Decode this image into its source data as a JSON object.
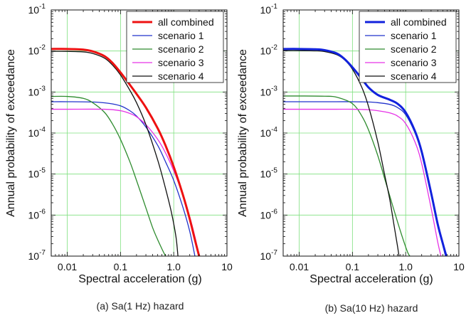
{
  "chart_data": [
    {
      "type": "line",
      "caption": "(a) Sa(1 Hz) hazard",
      "xlabel": "Spectral acceleration (g)",
      "ylabel": "Annual probability of exceedance",
      "xscale": "log",
      "yscale": "log",
      "xlim": [
        0.005,
        10
      ],
      "ylim": [
        1e-07,
        0.1
      ],
      "x_ticks": [
        "0.01",
        "0.1",
        "1.0",
        "10"
      ],
      "y_ticks": [
        "10^-7",
        "10^-6",
        "10^-5",
        "10^-4",
        "10^-3",
        "10^-2",
        "10^-1"
      ],
      "grid": true,
      "legend": "top-right",
      "series": [
        {
          "name": "all combined",
          "color": "#ee1111",
          "width": 3,
          "x": [
            0.005,
            0.01,
            0.02,
            0.03,
            0.05,
            0.07,
            0.1,
            0.15,
            0.2,
            0.3,
            0.5,
            0.7,
            1.0,
            1.5,
            2.0,
            2.5,
            3.0
          ],
          "y": [
            0.0112,
            0.0112,
            0.0108,
            0.0098,
            0.0075,
            0.0052,
            0.003,
            0.0015,
            0.0009,
            0.00042,
            0.00013,
            5e-05,
            1.5e-05,
            3e-06,
            8e-07,
            2.5e-07,
            1e-07
          ]
        },
        {
          "name": "scenario 1",
          "color": "#2233cc",
          "width": 1.3,
          "x": [
            0.005,
            0.01,
            0.03,
            0.06,
            0.1,
            0.15,
            0.2,
            0.3,
            0.5,
            0.7,
            1.0,
            1.5,
            2.0,
            2.5
          ],
          "y": [
            0.00058,
            0.00058,
            0.00057,
            0.00053,
            0.00046,
            0.00035,
            0.00026,
            0.00014,
            5e-05,
            2e-05,
            7e-06,
            1.5e-06,
            4e-07,
            1e-07
          ]
        },
        {
          "name": "scenario 2",
          "color": "#2e8b2e",
          "width": 1.3,
          "x": [
            0.005,
            0.01,
            0.02,
            0.03,
            0.05,
            0.07,
            0.1,
            0.15,
            0.2,
            0.3,
            0.4,
            0.5,
            0.6,
            0.7
          ],
          "y": [
            0.00078,
            0.00078,
            0.0007,
            0.00055,
            0.00032,
            0.00017,
            7e-05,
            2e-05,
            7e-06,
            1.5e-06,
            5e-07,
            2.5e-07,
            1.5e-07,
            1e-07
          ]
        },
        {
          "name": "scenario 3",
          "color": "#e633e6",
          "width": 1.3,
          "x": [
            0.005,
            0.01,
            0.05,
            0.1,
            0.15,
            0.2,
            0.3,
            0.5,
            0.7,
            1.0,
            1.5,
            2.0,
            2.5,
            3.0
          ],
          "y": [
            0.00038,
            0.00038,
            0.00038,
            0.00035,
            0.0003,
            0.00025,
            0.00016,
            7e-05,
            3.3e-05,
            1.2e-05,
            3e-06,
            9e-07,
            3e-07,
            1e-07
          ]
        },
        {
          "name": "scenario 4",
          "color": "#111111",
          "width": 1.3,
          "x": [
            0.005,
            0.01,
            0.02,
            0.03,
            0.05,
            0.07,
            0.1,
            0.15,
            0.2,
            0.3,
            0.5,
            0.7,
            0.9,
            1.1,
            1.2
          ],
          "y": [
            0.0098,
            0.0098,
            0.0095,
            0.0087,
            0.0067,
            0.0046,
            0.0026,
            0.0011,
            0.00055,
            0.00016,
            2.2e-05,
            4.5e-06,
            1.2e-06,
            3e-07,
            1e-07
          ]
        }
      ]
    },
    {
      "type": "line",
      "caption": "(b) Sa(10 Hz) hazard",
      "xlabel": "Spectral acceleration (g)",
      "ylabel": "Annual probability of exceedance",
      "xscale": "log",
      "yscale": "log",
      "xlim": [
        0.005,
        10
      ],
      "ylim": [
        1e-07,
        0.1
      ],
      "x_ticks": [
        "0.01",
        "0.1",
        "1.0",
        "10"
      ],
      "y_ticks": [
        "10^-7",
        "10^-6",
        "10^-5",
        "10^-4",
        "10^-3",
        "10^-2",
        "10^-1"
      ],
      "grid": true,
      "legend": "top-right",
      "series": [
        {
          "name": "all combined",
          "color": "#1122dd",
          "width": 3,
          "x": [
            0.005,
            0.01,
            0.02,
            0.03,
            0.05,
            0.07,
            0.1,
            0.15,
            0.2,
            0.3,
            0.5,
            0.7,
            1.0,
            1.5,
            2.0,
            3.0,
            4.0,
            5.0,
            5.8
          ],
          "y": [
            0.0112,
            0.0112,
            0.011,
            0.0105,
            0.0088,
            0.0065,
            0.004,
            0.0021,
            0.0013,
            0.00085,
            0.00065,
            0.00052,
            0.00032,
            0.00011,
            3.5e-05,
            3.5e-06,
            6e-07,
            2e-07,
            1e-07
          ]
        },
        {
          "name": "scenario 1",
          "color": "#2233cc",
          "width": 1.3,
          "x": [
            0.005,
            0.01,
            0.05,
            0.1,
            0.2,
            0.3,
            0.5,
            0.7,
            1.0,
            1.5,
            2.0,
            3.0,
            4.0,
            5.0,
            5.6
          ],
          "y": [
            0.00058,
            0.00058,
            0.00058,
            0.00058,
            0.00057,
            0.00055,
            0.0005,
            0.00042,
            0.00028,
            0.0001,
            3.2e-05,
            3.2e-06,
            5.5e-07,
            1.8e-07,
            1e-07
          ]
        },
        {
          "name": "scenario 2",
          "color": "#2e8b2e",
          "width": 1.3,
          "x": [
            0.005,
            0.01,
            0.03,
            0.05,
            0.1,
            0.15,
            0.2,
            0.3,
            0.4,
            0.5,
            0.7,
            0.9,
            1.1,
            1.2
          ],
          "y": [
            0.0008,
            0.0008,
            0.00079,
            0.00075,
            0.00052,
            0.00026,
            0.00012,
            2.8e-05,
            8e-06,
            3e-06,
            7e-07,
            2.5e-07,
            1.2e-07,
            1e-07
          ]
        },
        {
          "name": "scenario 3",
          "color": "#e633e6",
          "width": 1.3,
          "x": [
            0.005,
            0.01,
            0.05,
            0.1,
            0.2,
            0.3,
            0.5,
            0.7,
            1.0,
            1.5,
            2.0,
            3.0,
            4.0,
            4.6
          ],
          "y": [
            0.00038,
            0.00038,
            0.00038,
            0.00038,
            0.00037,
            0.00035,
            0.00031,
            0.00026,
            0.00017,
            6e-05,
            1.8e-05,
            1.5e-06,
            2.2e-07,
            1e-07
          ]
        },
        {
          "name": "scenario 4",
          "color": "#111111",
          "width": 1.3,
          "x": [
            0.005,
            0.01,
            0.02,
            0.03,
            0.05,
            0.07,
            0.1,
            0.15,
            0.2,
            0.3,
            0.4,
            0.5,
            0.6,
            0.7,
            0.75
          ],
          "y": [
            0.0102,
            0.0102,
            0.0101,
            0.0097,
            0.0082,
            0.0062,
            0.0036,
            0.0013,
            0.00045,
            6e-05,
            1e-05,
            2.5e-06,
            6e-07,
            1.8e-07,
            1e-07
          ]
        }
      ]
    }
  ]
}
